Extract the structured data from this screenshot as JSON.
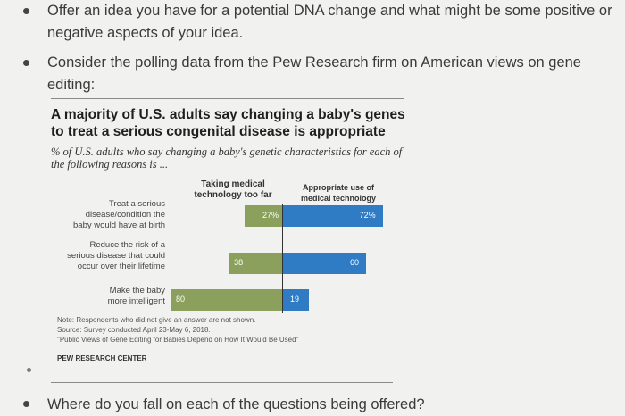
{
  "bullets": [
    {
      "line1": "Offer an idea you have for a potential DNA change and what might be some positive or",
      "line2": "negative aspects of your idea."
    },
    {
      "line1": "Consider the polling data from the Pew Research firm on American views on gene",
      "line2": "editing:"
    }
  ],
  "final_bullet": "Where do you fall on each of the questions being offered?",
  "chart_data": {
    "type": "bar",
    "title_line1": "A majority of U.S. adults say changing a baby's genes",
    "title_line2": "to treat a serious congenital disease is appropriate",
    "subtitle_line1": "% of U.S. adults who say changing a baby's genetic characteristics for each of",
    "subtitle_line2": "the following reasons is ...",
    "column_left_line1": "Taking medical",
    "column_left_line2": "technology too far",
    "column_right_line1": "Appropriate use of",
    "column_right_line2": "medical technology",
    "categories": [
      {
        "lines": [
          "Treat a serious",
          "disease/condition the",
          "baby would have at birth"
        ]
      },
      {
        "lines": [
          "Reduce the risk of a",
          "serious disease that could",
          "occur over their lifetime"
        ]
      },
      {
        "lines": [
          "Make the baby",
          "more intelligent"
        ]
      }
    ],
    "series": [
      {
        "name": "Taking medical technology too far",
        "values": [
          27,
          38,
          80
        ],
        "labels": [
          "27%",
          "38",
          "80"
        ],
        "color": "#8aa05c"
      },
      {
        "name": "Appropriate use of medical technology",
        "values": [
          72,
          60,
          19
        ],
        "labels": [
          "72%",
          "60",
          "19"
        ],
        "color": "#2f7bc4"
      }
    ],
    "note": "Note: Respondents who did not give an answer are not shown.",
    "source": "Source: Survey conducted April 23-May 6, 2018.",
    "report": "\"Public Views of Gene Editing for Babies Depend on How It Would Be Used\"",
    "org": "PEW RESEARCH CENTER"
  }
}
